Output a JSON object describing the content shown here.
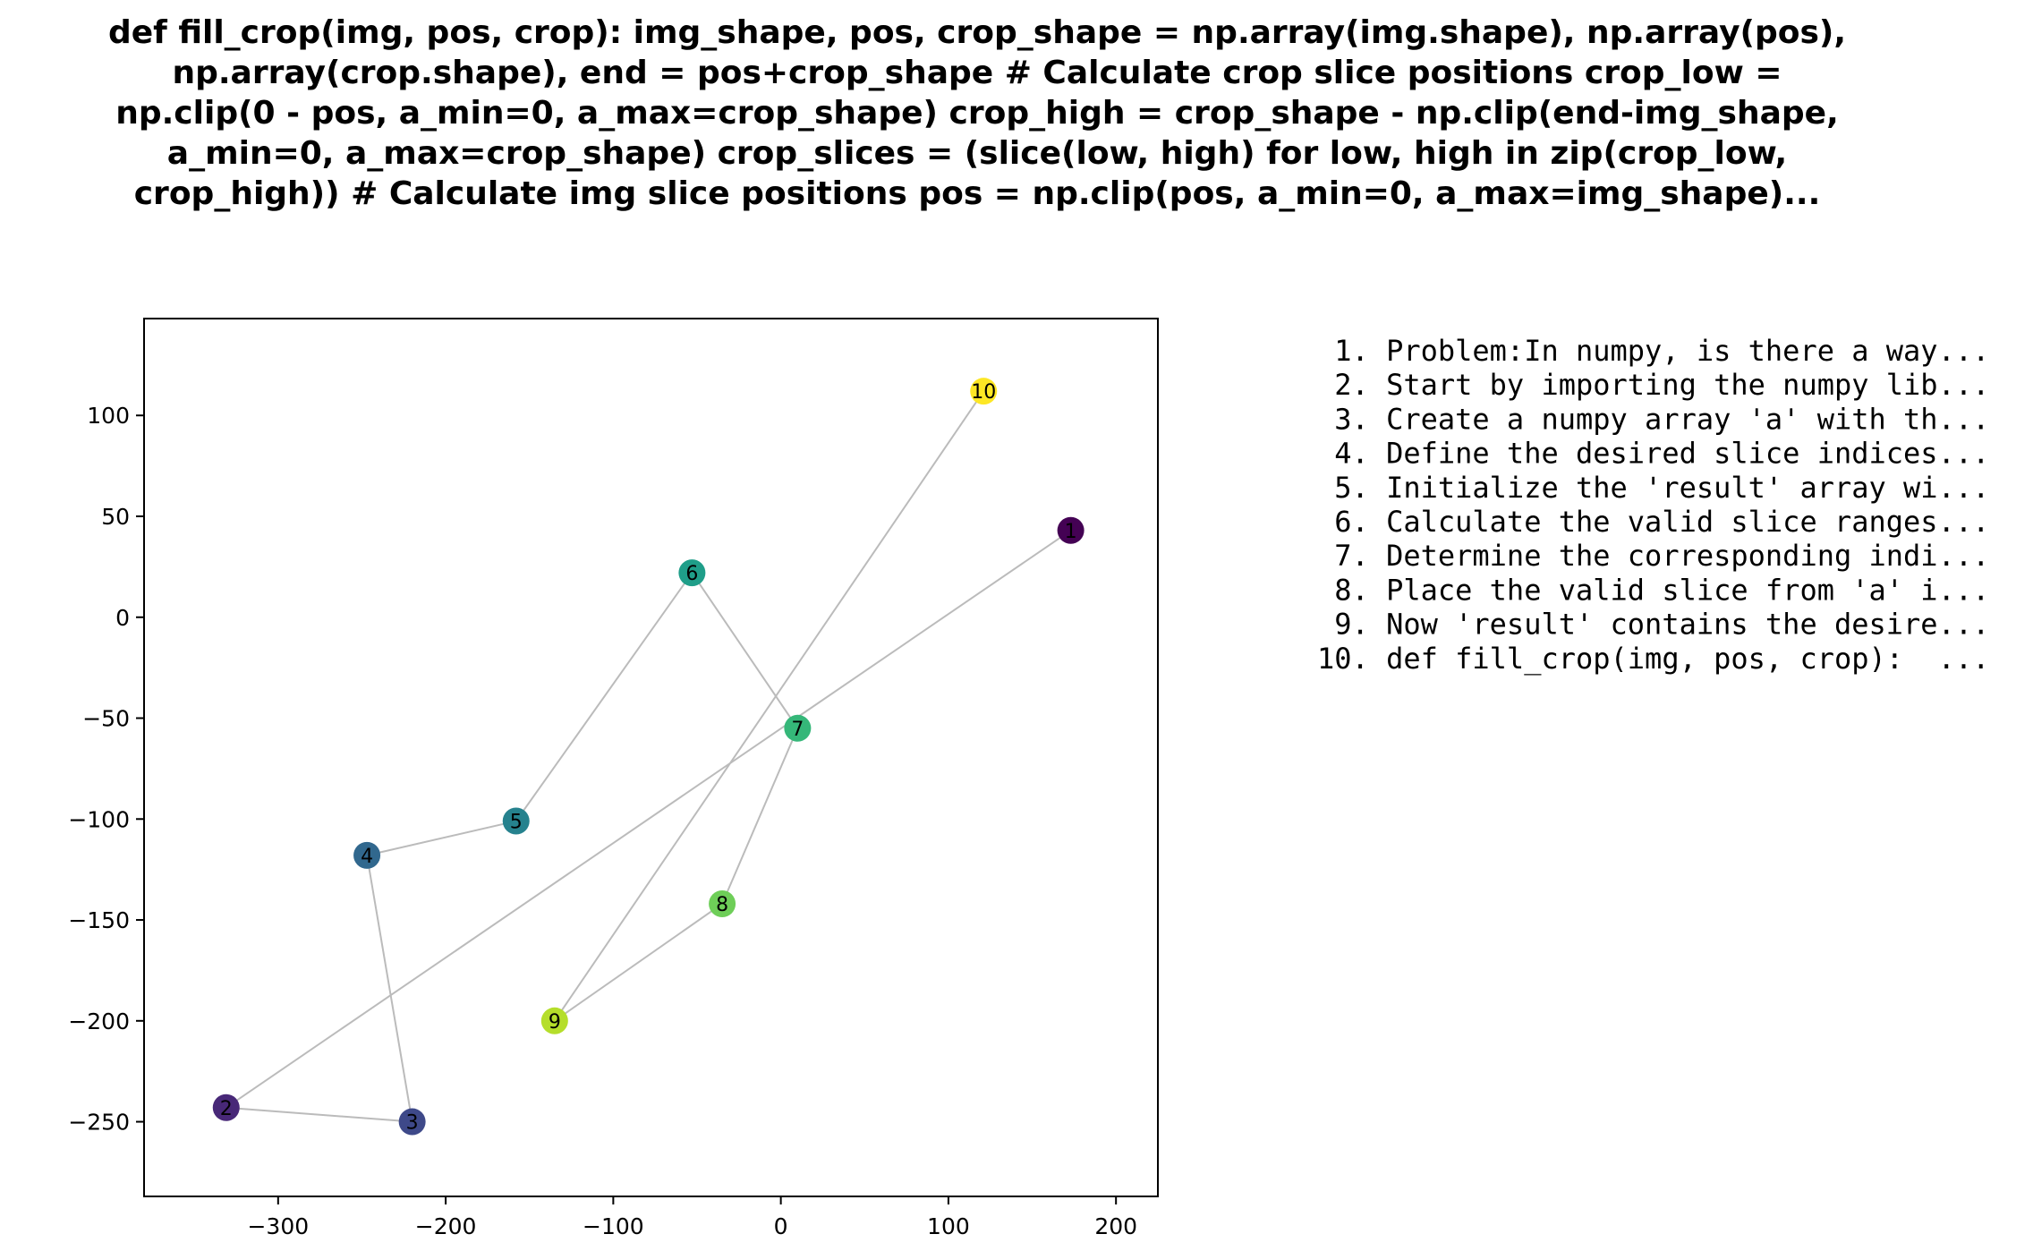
{
  "chart_data": {
    "type": "scatter",
    "title_lines": [
      "def fill_crop(img, pos, crop):    img_shape, pos, crop_shape = np.array(img.shape), np.array(pos),",
      "np.array(crop.shape),    end = pos+crop_shape    # Calculate crop slice positions    crop_low =",
      "np.clip(0 - pos, a_min=0, a_max=crop_shape)    crop_high = crop_shape - np.clip(end-img_shape,",
      "a_min=0, a_max=crop_shape)    crop_slices = (slice(low, high) for low, high in zip(crop_low,",
      "crop_high))    # Calculate img slice positions    pos = np.clip(pos, a_min=0, a_max=img_shape)..."
    ],
    "xlim": [
      -380,
      225
    ],
    "ylim": [
      -287,
      148
    ],
    "xticks": [
      -300,
      -200,
      -100,
      0,
      100,
      200
    ],
    "xtick_labels": [
      "−300",
      "−200",
      "−100",
      "0",
      "100",
      "200"
    ],
    "yticks": [
      100,
      50,
      0,
      -50,
      -100,
      -150,
      -200,
      -250
    ],
    "ytick_labels": [
      "100",
      "50",
      "0",
      "−50",
      "−100",
      "−150",
      "−200",
      "−250"
    ],
    "grid": false,
    "line_color": "#bbbbbb",
    "points": [
      {
        "label": "1",
        "x": 173,
        "y": 43,
        "color": "#440154"
      },
      {
        "label": "2",
        "x": -331,
        "y": -243,
        "color": "#482878"
      },
      {
        "label": "3",
        "x": -220,
        "y": -250,
        "color": "#3e4989"
      },
      {
        "label": "4",
        "x": -247,
        "y": -118,
        "color": "#31688e"
      },
      {
        "label": "5",
        "x": -158,
        "y": -101,
        "color": "#26828e"
      },
      {
        "label": "6",
        "x": -53,
        "y": 22,
        "color": "#1f9e89"
      },
      {
        "label": "7",
        "x": 10,
        "y": -55,
        "color": "#35b779"
      },
      {
        "label": "8",
        "x": -35,
        "y": -142,
        "color": "#6ece58"
      },
      {
        "label": "9",
        "x": -135,
        "y": -200,
        "color": "#b5de2b"
      },
      {
        "label": "10",
        "x": 121,
        "y": 112,
        "color": "#fde725"
      }
    ],
    "steps": [
      " 1. Problem:In numpy, is there a way...",
      " 2. Start by importing the numpy lib...",
      " 3. Create a numpy array 'a' with th...",
      " 4. Define the desired slice indices...",
      " 5. Initialize the 'result' array wi...",
      " 6. Calculate the valid slice ranges...",
      " 7. Determine the corresponding indi...",
      " 8. Place the valid slice from 'a' i...",
      " 9. Now 'result' contains the desire...",
      "10. def fill_crop(img, pos, crop):  ..."
    ]
  }
}
